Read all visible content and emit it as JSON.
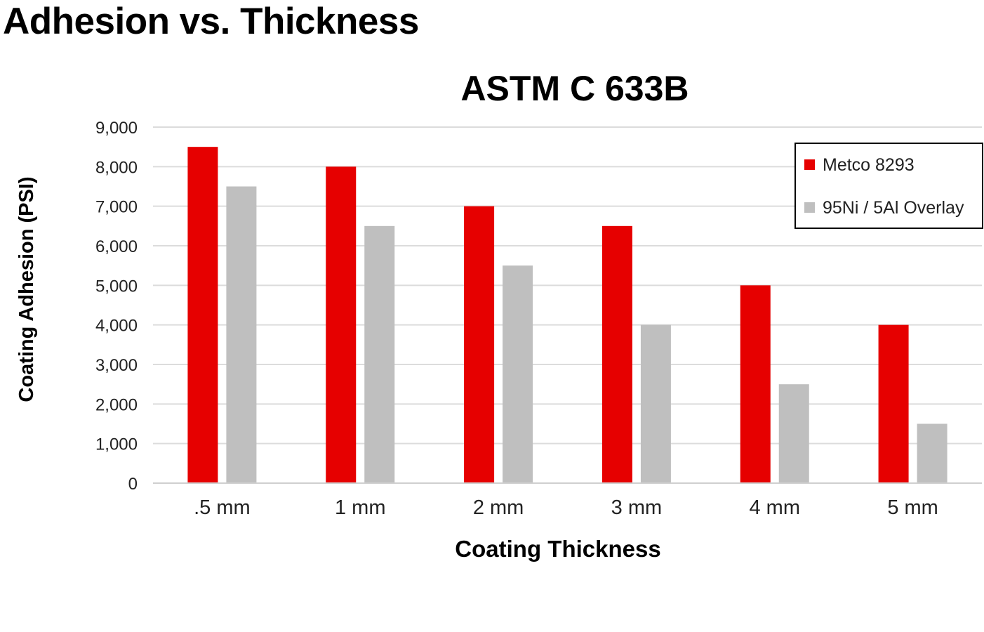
{
  "page": {
    "title": "Adhesion vs. Thickness"
  },
  "chart_data": {
    "type": "bar",
    "title": "ASTM C 633B",
    "xlabel": "Coating Thickness",
    "ylabel": "Coating Adhesion (PSI)",
    "categories": [
      ".5 mm",
      "1 mm",
      "2 mm",
      "3 mm",
      "4 mm",
      "5 mm"
    ],
    "series": [
      {
        "name": "Metco 8293",
        "color": "#e60000",
        "values": [
          8500,
          8000,
          7000,
          6500,
          5000,
          4000
        ]
      },
      {
        "name": "95Ni / 5Al Overlay",
        "color": "#bfbfbf",
        "values": [
          7500,
          6500,
          5500,
          4000,
          2500,
          1500
        ]
      }
    ],
    "ylim": [
      0,
      9000
    ],
    "yticks": [
      "0",
      "1,000",
      "2,000",
      "3,000",
      "4,000",
      "5,000",
      "6,000",
      "7,000",
      "8,000",
      "9,000"
    ],
    "grid": true,
    "legend_position": "top-right"
  }
}
